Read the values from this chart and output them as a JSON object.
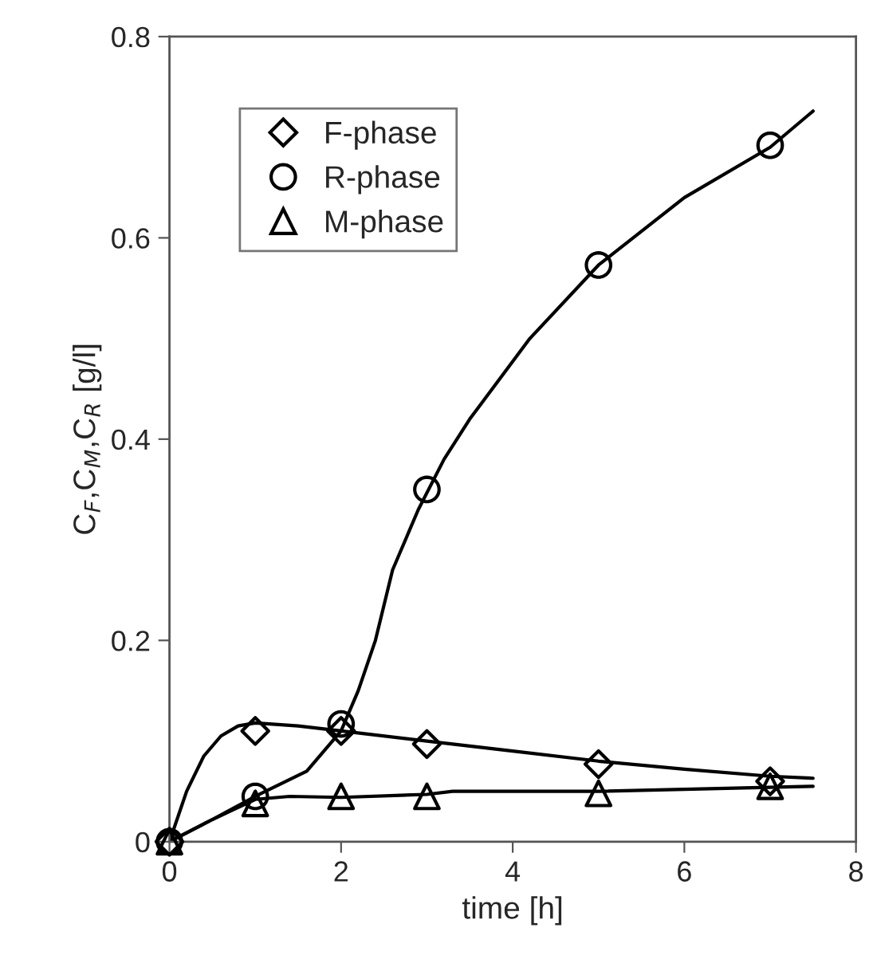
{
  "chart_data": {
    "type": "scatter",
    "xlabel": "time [h]",
    "ylabel": "C$_{F}$,C$_{M}$,C$_{R}$ [g/l]",
    "xlim": [
      0,
      8
    ],
    "ylim": [
      0,
      0.8
    ],
    "xticks": [
      0,
      2,
      4,
      6,
      8
    ],
    "yticks": [
      0,
      0.2,
      0.4,
      0.6,
      0.8
    ],
    "grid": false,
    "legend": "top left",
    "series": [
      {
        "name": "F-phase",
        "marker": "diamond",
        "color": "#000000",
        "x": [
          0,
          1,
          2,
          3,
          5,
          7
        ],
        "values": [
          0,
          0.11,
          0.11,
          0.097,
          0.077,
          0.06
        ]
      },
      {
        "name": "R-phase",
        "marker": "circle",
        "color": "#000000",
        "x": [
          0,
          1,
          2,
          3,
          5,
          7
        ],
        "values": [
          0,
          0.045,
          0.117,
          0.35,
          0.573,
          0.692
        ]
      },
      {
        "name": "M-phase",
        "marker": "triangle",
        "color": "#000000",
        "x": [
          0,
          1,
          2,
          3,
          5,
          7
        ],
        "values": [
          0,
          0.038,
          0.045,
          0.045,
          0.048,
          0.055
        ]
      },
      {
        "type": "line",
        "marker": "none",
        "line_style": "solid",
        "color": "#000000",
        "x": [
          0,
          0.2,
          0.4,
          0.6,
          0.8,
          1,
          1.5,
          2,
          3,
          4,
          5,
          6,
          7,
          7.5
        ],
        "values": [
          0,
          0.05,
          0.085,
          0.105,
          0.115,
          0.118,
          0.115,
          0.11,
          0.1,
          0.09,
          0.08,
          0.072,
          0.065,
          0.063
        ]
      },
      {
        "type": "line",
        "marker": "none",
        "line_style": "solid",
        "color": "#000000",
        "x": [
          0,
          0.5,
          1,
          1.6,
          2,
          2.2,
          2.4,
          2.6,
          2.9,
          3.2,
          3.5,
          4.2,
          5,
          6,
          7,
          7.5
        ],
        "values": [
          0,
          0.022,
          0.045,
          0.07,
          0.11,
          0.15,
          0.2,
          0.27,
          0.33,
          0.38,
          0.42,
          0.5,
          0.573,
          0.64,
          0.69,
          0.726
        ]
      },
      {
        "type": "line",
        "marker": "none",
        "line_style": "solid",
        "color": "#000000",
        "x": [
          0,
          0.5,
          1,
          1.4,
          2,
          3,
          3.3,
          5,
          7.5
        ],
        "values": [
          0,
          0.022,
          0.042,
          0.045,
          0.044,
          0.047,
          0.05,
          0.05,
          0.055
        ]
      }
    ]
  }
}
